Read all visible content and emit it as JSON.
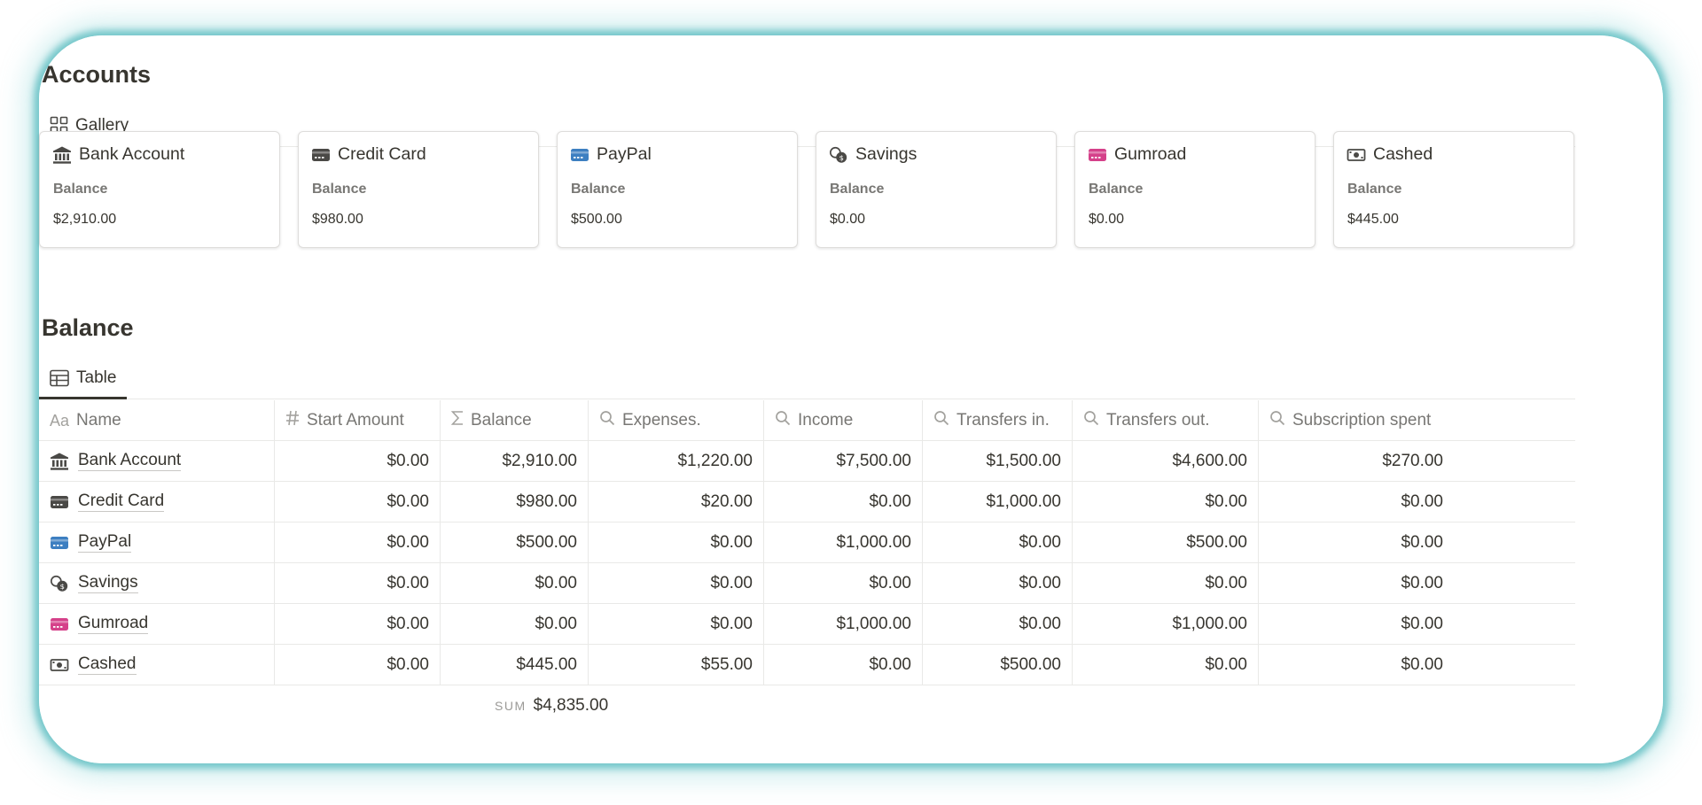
{
  "accounts": {
    "title": "Accounts",
    "view_tab": "Gallery",
    "cards": [
      {
        "name": "Bank Account",
        "icon": "bank-icon",
        "label": "Balance",
        "value": "$2,910.00"
      },
      {
        "name": "Credit Card",
        "icon": "credit-card-icon",
        "label": "Balance",
        "value": "$980.00"
      },
      {
        "name": "PayPal",
        "icon": "paypal-card-icon",
        "label": "Balance",
        "value": "$500.00"
      },
      {
        "name": "Savings",
        "icon": "coins-icon",
        "label": "Balance",
        "value": "$0.00"
      },
      {
        "name": "Gumroad",
        "icon": "gumroad-card-icon",
        "label": "Balance",
        "value": "$0.00"
      },
      {
        "name": "Cashed",
        "icon": "cash-icon",
        "label": "Balance",
        "value": "$445.00"
      }
    ]
  },
  "balance": {
    "title": "Balance",
    "view_tab": "Table",
    "columns": [
      {
        "label": "Name",
        "icon": "text-type-icon"
      },
      {
        "label": "Start Amount",
        "icon": "number-icon"
      },
      {
        "label": "Balance",
        "icon": "sigma-icon"
      },
      {
        "label": "Expenses.",
        "icon": "search-icon"
      },
      {
        "label": "Income",
        "icon": "search-icon"
      },
      {
        "label": "Transfers in.",
        "icon": "search-icon"
      },
      {
        "label": "Transfers out.",
        "icon": "search-icon"
      },
      {
        "label": "Subscription spent",
        "icon": "search-icon"
      }
    ],
    "rows": [
      {
        "name": "Bank Account",
        "icon": "bank-icon",
        "cells": [
          "$0.00",
          "$2,910.00",
          "$1,220.00",
          "$7,500.00",
          "$1,500.00",
          "$4,600.00",
          "$270.00"
        ]
      },
      {
        "name": "Credit Card",
        "icon": "credit-card-icon",
        "cells": [
          "$0.00",
          "$980.00",
          "$20.00",
          "$0.00",
          "$1,000.00",
          "$0.00",
          "$0.00"
        ]
      },
      {
        "name": "PayPal",
        "icon": "paypal-card-icon",
        "cells": [
          "$0.00",
          "$500.00",
          "$0.00",
          "$1,000.00",
          "$0.00",
          "$500.00",
          "$0.00"
        ]
      },
      {
        "name": "Savings",
        "icon": "coins-icon",
        "cells": [
          "$0.00",
          "$0.00",
          "$0.00",
          "$0.00",
          "$0.00",
          "$0.00",
          "$0.00"
        ]
      },
      {
        "name": "Gumroad",
        "icon": "gumroad-card-icon",
        "cells": [
          "$0.00",
          "$0.00",
          "$0.00",
          "$1,000.00",
          "$0.00",
          "$1,000.00",
          "$0.00"
        ]
      },
      {
        "name": "Cashed",
        "icon": "cash-icon",
        "cells": [
          "$0.00",
          "$445.00",
          "$55.00",
          "$0.00",
          "$500.00",
          "$0.00",
          "$0.00"
        ]
      }
    ],
    "sum_label": "SUM",
    "sum_value": "$4,835.00"
  },
  "colors": {
    "accent_glow": "#56babe",
    "paypal_blue": "#3d7fc1",
    "gumroad_pink": "#d5418a",
    "icon_dark": "#4a4946"
  }
}
